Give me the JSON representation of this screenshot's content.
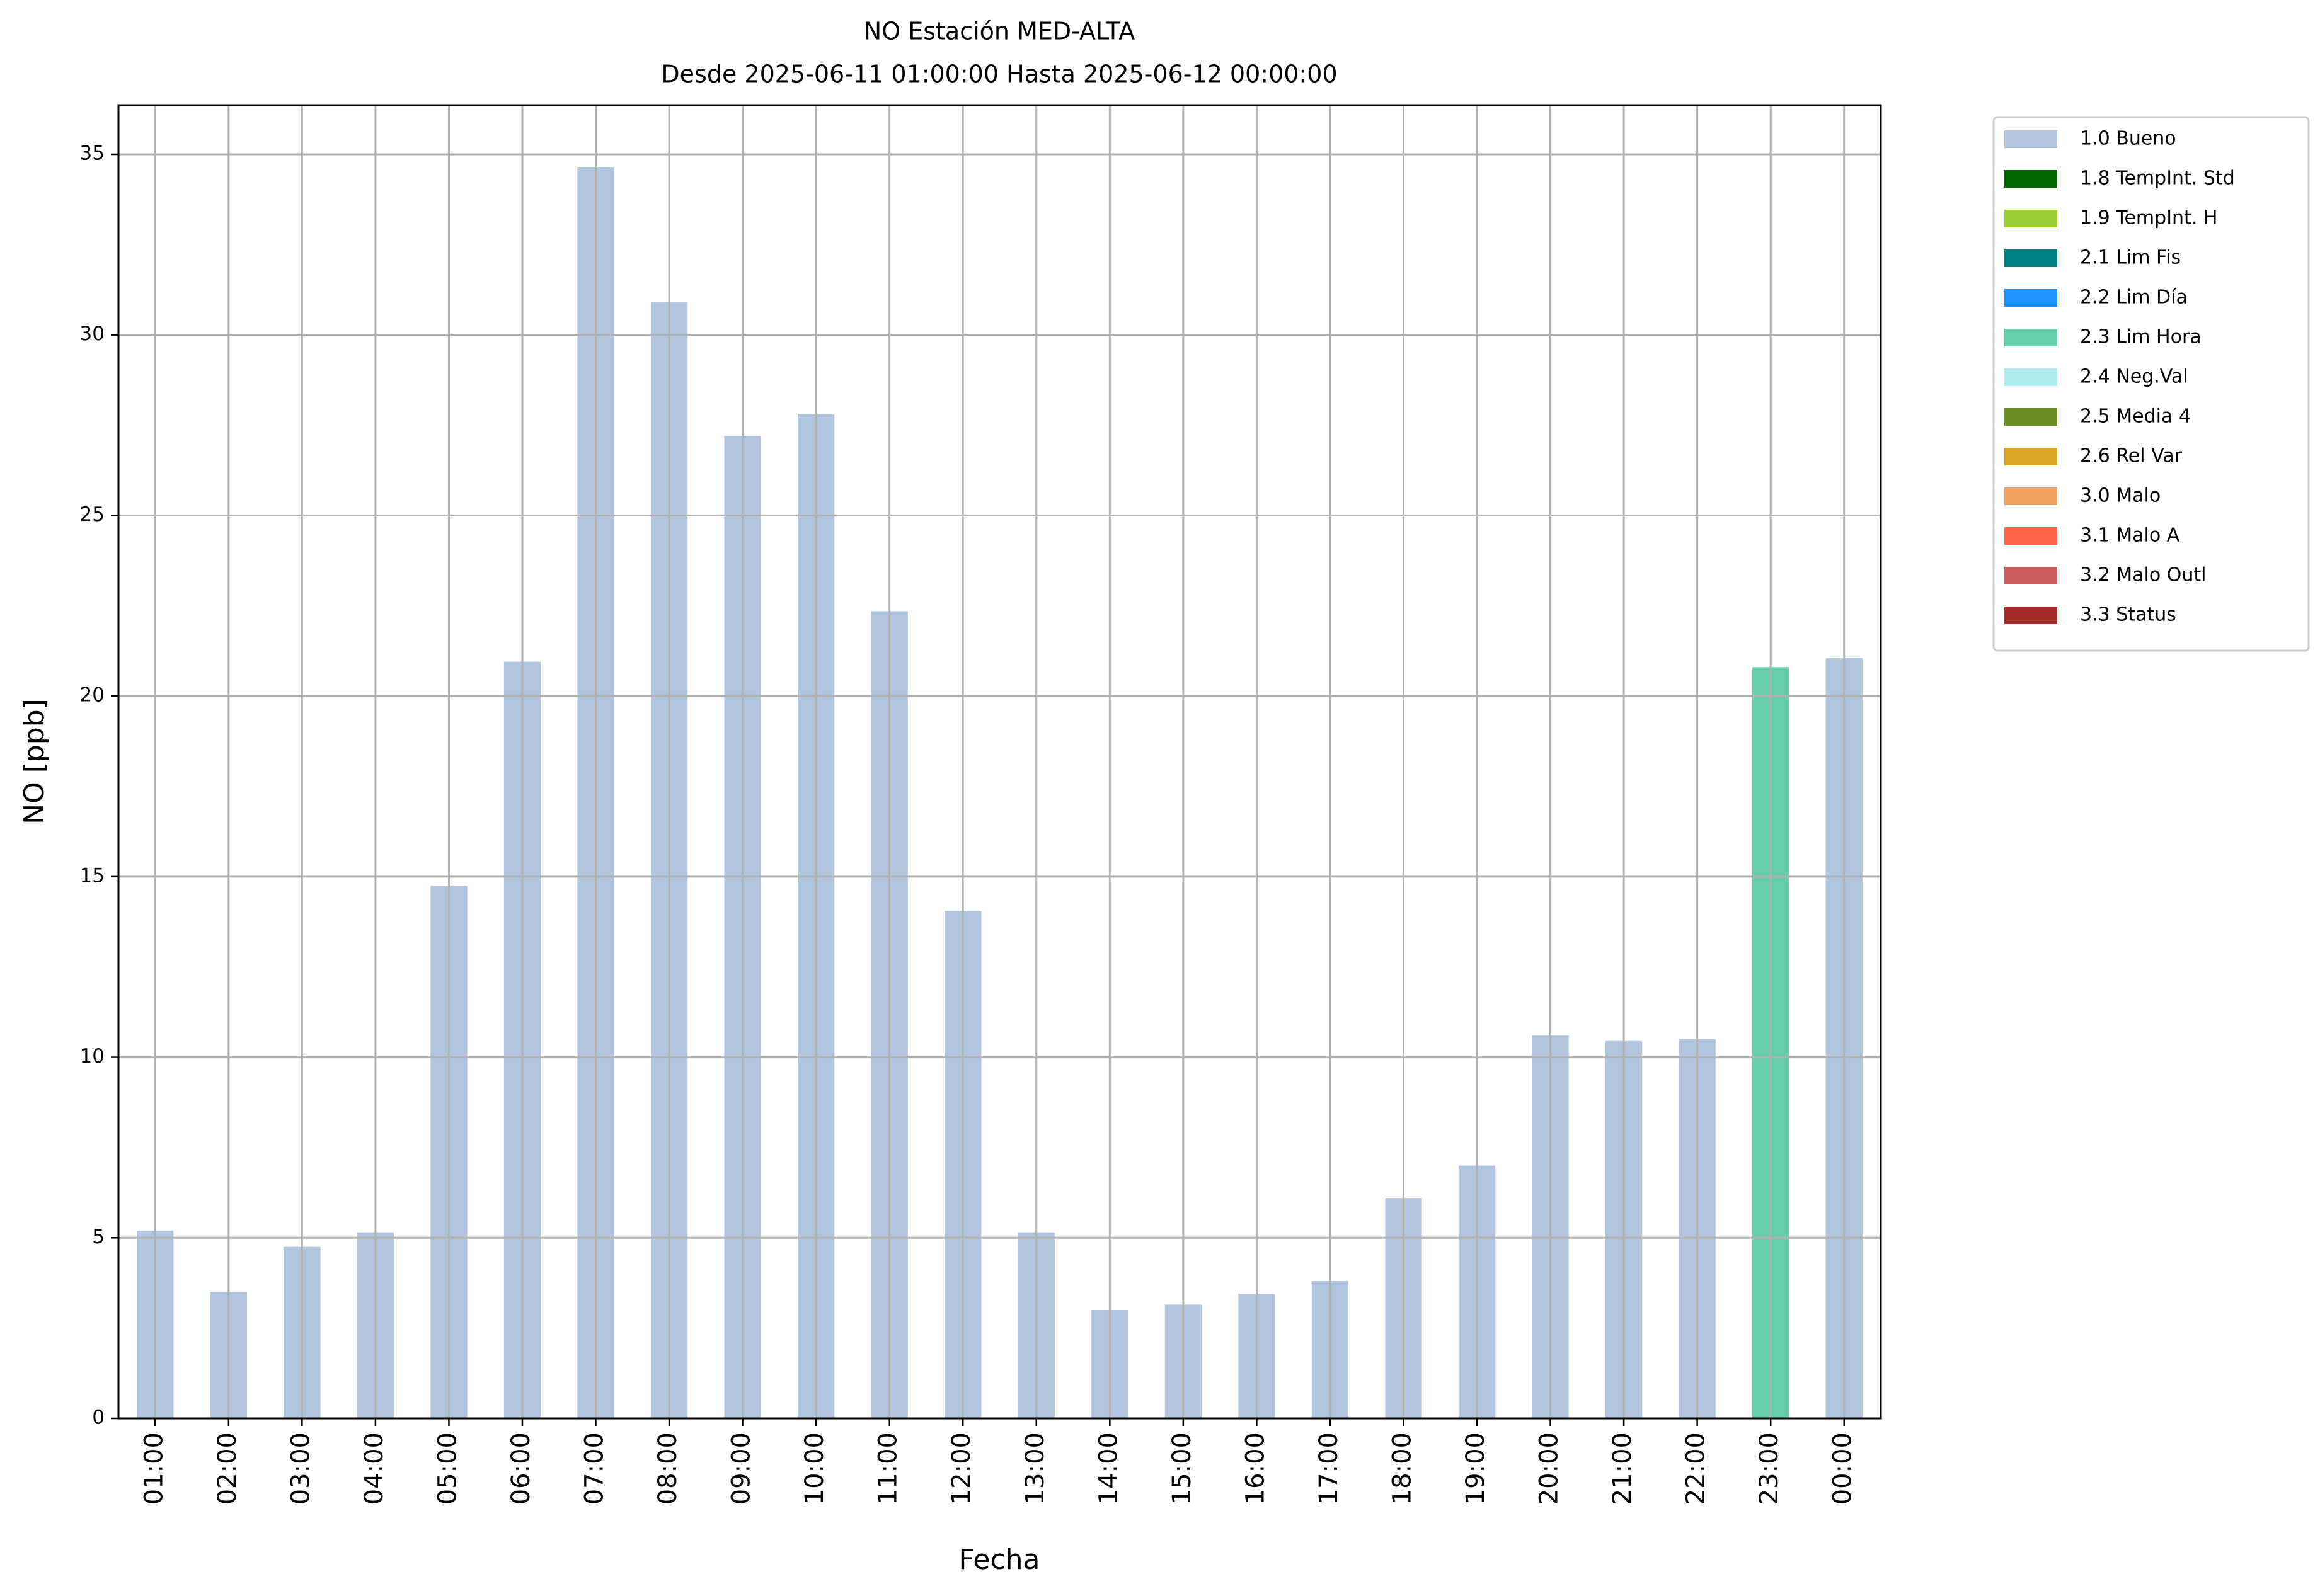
{
  "chart_data": {
    "type": "bar",
    "stacked": true,
    "title": "NO Estación MED-ALTA",
    "subtitle": "Desde 2025-06-11 01:00:00 Hasta 2025-06-12 00:00:00",
    "x_label": "Fecha",
    "y_label": "NO [ppb]",
    "categories": [
      "01:00",
      "02:00",
      "03:00",
      "04:00",
      "05:00",
      "06:00",
      "07:00",
      "08:00",
      "09:00",
      "10:00",
      "11:00",
      "12:00",
      "13:00",
      "14:00",
      "15:00",
      "16:00",
      "17:00",
      "18:00",
      "19:00",
      "20:00",
      "21:00",
      "22:00",
      "23:00",
      "00:00"
    ],
    "series": [
      {
        "name": "1.0 Bueno",
        "color": "#b0c4de",
        "values": [
          5.2,
          3.5,
          4.75,
          5.15,
          14.75,
          20.95,
          34.65,
          30.9,
          27.2,
          27.8,
          22.35,
          14.05,
          5.15,
          3.0,
          3.15,
          3.45,
          3.8,
          6.1,
          7.0,
          10.6,
          10.45,
          10.5,
          null,
          21.05
        ]
      },
      {
        "name": "1.8 TempInt. Std",
        "color": "#006400",
        "values": [
          null,
          null,
          null,
          null,
          null,
          null,
          null,
          null,
          null,
          null,
          null,
          null,
          null,
          null,
          null,
          null,
          null,
          null,
          null,
          null,
          null,
          null,
          null,
          null
        ]
      },
      {
        "name": "1.9 TempInt. H",
        "color": "#9acd32",
        "values": [
          null,
          null,
          null,
          null,
          null,
          null,
          null,
          null,
          null,
          null,
          null,
          null,
          null,
          null,
          null,
          null,
          null,
          null,
          null,
          null,
          null,
          null,
          null,
          null
        ]
      },
      {
        "name": "2.1 Lim Fis",
        "color": "#008080",
        "values": [
          null,
          null,
          null,
          null,
          null,
          null,
          null,
          null,
          null,
          null,
          null,
          null,
          null,
          null,
          null,
          null,
          null,
          null,
          null,
          null,
          null,
          null,
          null,
          null
        ]
      },
      {
        "name": "2.2 Lim Día",
        "color": "#1e90ff",
        "values": [
          null,
          null,
          null,
          null,
          null,
          null,
          null,
          null,
          null,
          null,
          null,
          null,
          null,
          null,
          null,
          null,
          null,
          null,
          null,
          null,
          null,
          null,
          null,
          null
        ]
      },
      {
        "name": "2.3 Lim Hora",
        "color": "#66cdaa",
        "values": [
          null,
          null,
          null,
          null,
          null,
          null,
          null,
          null,
          null,
          null,
          null,
          null,
          null,
          null,
          null,
          null,
          null,
          null,
          null,
          null,
          null,
          null,
          20.8,
          null
        ]
      },
      {
        "name": "2.4 Neg.Val",
        "color": "#afeeee",
        "values": [
          null,
          null,
          null,
          null,
          null,
          null,
          null,
          null,
          null,
          null,
          null,
          null,
          null,
          null,
          null,
          null,
          null,
          null,
          null,
          null,
          null,
          null,
          null,
          null
        ]
      },
      {
        "name": "2.5 Media 4",
        "color": "#6b8e23",
        "values": [
          null,
          null,
          null,
          null,
          null,
          null,
          null,
          null,
          null,
          null,
          null,
          null,
          null,
          null,
          null,
          null,
          null,
          null,
          null,
          null,
          null,
          null,
          null,
          null
        ]
      },
      {
        "name": "2.6 Rel Var",
        "color": "#daa520",
        "values": [
          null,
          null,
          null,
          null,
          null,
          null,
          null,
          null,
          null,
          null,
          null,
          null,
          null,
          null,
          null,
          null,
          null,
          null,
          null,
          null,
          null,
          null,
          null,
          null
        ]
      },
      {
        "name": "3.0 Malo",
        "color": "#f4a460",
        "values": [
          null,
          null,
          null,
          null,
          null,
          null,
          null,
          null,
          null,
          null,
          null,
          null,
          null,
          null,
          null,
          null,
          null,
          null,
          null,
          null,
          null,
          null,
          null,
          null
        ]
      },
      {
        "name": "3.1 Malo A",
        "color": "#ff6347",
        "values": [
          null,
          null,
          null,
          null,
          null,
          null,
          null,
          null,
          null,
          null,
          null,
          null,
          null,
          null,
          null,
          null,
          null,
          null,
          null,
          null,
          null,
          null,
          null,
          null
        ]
      },
      {
        "name": "3.2 Malo Outl",
        "color": "#cd5c5c",
        "values": [
          null,
          null,
          null,
          null,
          null,
          null,
          null,
          null,
          null,
          null,
          null,
          null,
          null,
          null,
          null,
          null,
          null,
          null,
          null,
          null,
          null,
          null,
          null,
          null
        ]
      },
      {
        "name": "3.3 Status",
        "color": "#a52a2a",
        "values": [
          null,
          null,
          null,
          null,
          null,
          null,
          null,
          null,
          null,
          null,
          null,
          null,
          null,
          null,
          null,
          null,
          null,
          null,
          null,
          null,
          null,
          null,
          null,
          null
        ]
      }
    ],
    "ylim": [
      0,
      36.36
    ],
    "yticks": [
      0,
      5,
      10,
      15,
      20,
      25,
      30,
      35
    ],
    "grid": true,
    "legend": "outside-upper-right"
  }
}
